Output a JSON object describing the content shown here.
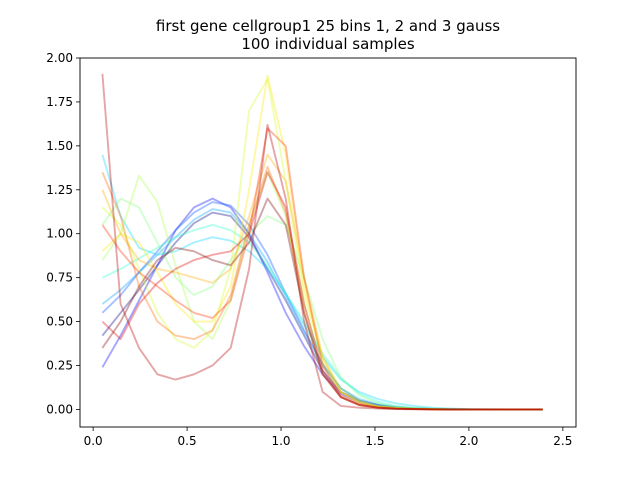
{
  "chart_data": {
    "type": "line",
    "title": "first gene cellgroup1 25 bins 1, 2 and 3 gauss",
    "subtitle": "100 individual samples",
    "xlabel": "",
    "ylabel": "",
    "xlim": [
      -0.07,
      2.57
    ],
    "ylim": [
      -0.1,
      2.0
    ],
    "xticks": [
      0.0,
      0.5,
      1.0,
      1.5,
      2.0,
      2.5
    ],
    "xtick_labels": [
      "0.0",
      "0.5",
      "1.0",
      "1.5",
      "2.0",
      "2.5"
    ],
    "yticks": [
      0.0,
      0.25,
      0.5,
      0.75,
      1.0,
      1.25,
      1.5,
      1.75,
      2.0
    ],
    "ytick_labels": [
      "0.00",
      "0.25",
      "0.50",
      "0.75",
      "1.00",
      "1.25",
      "1.50",
      "1.75",
      "2.00"
    ],
    "grid": false,
    "legend": "none",
    "colormap": "jet",
    "line_alpha": 0.35,
    "x": [
      0.049,
      0.146,
      0.244,
      0.342,
      0.439,
      0.537,
      0.635,
      0.732,
      0.83,
      0.928,
      1.025,
      1.123,
      1.221,
      1.318,
      1.416,
      1.514,
      1.611,
      1.709,
      1.807,
      1.904,
      2.002,
      2.1,
      2.197,
      2.295,
      2.393
    ],
    "series": [
      {
        "color": "#00007f",
        "values": [
          0.42,
          0.55,
          0.68,
          0.82,
          0.95,
          1.06,
          1.12,
          1.1,
          0.98,
          0.8,
          0.62,
          0.42,
          0.22,
          0.1,
          0.05,
          0.025,
          0.012,
          0.006,
          0.003,
          0.001,
          0.0,
          0.0,
          0.0,
          0.0,
          0.0
        ]
      },
      {
        "color": "#0000ff",
        "values": [
          0.24,
          0.42,
          0.62,
          0.82,
          1.02,
          1.15,
          1.2,
          1.15,
          1.0,
          0.78,
          0.55,
          0.36,
          0.2,
          0.09,
          0.04,
          0.02,
          0.01,
          0.005,
          0.002,
          0.001,
          0.0,
          0.0,
          0.0,
          0.0,
          0.0
        ]
      },
      {
        "color": "#0050ff",
        "values": [
          0.55,
          0.65,
          0.78,
          0.9,
          1.02,
          1.12,
          1.18,
          1.16,
          1.05,
          0.88,
          0.66,
          0.45,
          0.26,
          0.12,
          0.05,
          0.025,
          0.012,
          0.006,
          0.003,
          0.001,
          0.0,
          0.0,
          0.0,
          0.0,
          0.0
        ]
      },
      {
        "color": "#00a0ff",
        "values": [
          0.6,
          0.68,
          0.78,
          0.88,
          0.98,
          1.08,
          1.14,
          1.12,
          1.0,
          0.84,
          0.64,
          0.44,
          0.25,
          0.12,
          0.06,
          0.03,
          0.015,
          0.007,
          0.003,
          0.001,
          0.0,
          0.0,
          0.0,
          0.0,
          0.0
        ]
      },
      {
        "color": "#00d4ff",
        "values": [
          1.45,
          1.1,
          0.92,
          0.88,
          0.9,
          0.95,
          0.98,
          0.96,
          0.9,
          0.8,
          0.66,
          0.48,
          0.3,
          0.17,
          0.1,
          0.06,
          0.035,
          0.02,
          0.01,
          0.005,
          0.002,
          0.001,
          0.0,
          0.0,
          0.0
        ]
      },
      {
        "color": "#29ffce",
        "values": [
          0.75,
          0.8,
          0.86,
          0.92,
          0.98,
          1.02,
          1.05,
          1.02,
          0.95,
          0.82,
          0.66,
          0.5,
          0.32,
          0.18,
          0.09,
          0.045,
          0.02,
          0.01,
          0.005,
          0.002,
          0.001,
          0.0,
          0.0,
          0.0,
          0.0
        ]
      },
      {
        "color": "#7dff7a",
        "values": [
          1.05,
          1.2,
          1.15,
          0.95,
          0.75,
          0.65,
          0.7,
          0.85,
          1.0,
          1.1,
          1.05,
          0.75,
          0.4,
          0.18,
          0.08,
          0.035,
          0.015,
          0.007,
          0.003,
          0.001,
          0.0,
          0.0,
          0.0,
          0.0,
          0.0
        ]
      },
      {
        "color": "#a8ff4a",
        "values": [
          0.85,
          1.0,
          1.33,
          1.18,
          0.82,
          0.5,
          0.4,
          0.62,
          1.05,
          1.35,
          1.1,
          0.6,
          0.25,
          0.1,
          0.04,
          0.018,
          0.008,
          0.004,
          0.002,
          0.001,
          0.0,
          0.0,
          0.0,
          0.0,
          0.0
        ]
      },
      {
        "color": "#ceff29",
        "values": [
          1.15,
          1.05,
          0.8,
          0.55,
          0.4,
          0.35,
          0.45,
          0.8,
          1.7,
          1.88,
          1.3,
          0.65,
          0.3,
          0.12,
          0.05,
          0.02,
          0.01,
          0.005,
          0.002,
          0.001,
          0.0,
          0.0,
          0.0,
          0.0,
          0.0
        ]
      },
      {
        "color": "#ffe600",
        "values": [
          0.9,
          1.0,
          0.95,
          0.78,
          0.6,
          0.5,
          0.5,
          0.7,
          1.25,
          1.9,
          1.45,
          0.7,
          0.28,
          0.1,
          0.04,
          0.016,
          0.007,
          0.003,
          0.001,
          0.0,
          0.0,
          0.0,
          0.0,
          0.0,
          0.0
        ]
      },
      {
        "color": "#ffb000",
        "values": [
          1.25,
          1.0,
          0.85,
          0.8,
          0.78,
          0.75,
          0.72,
          0.8,
          1.1,
          1.45,
          1.3,
          0.75,
          0.3,
          0.1,
          0.04,
          0.015,
          0.006,
          0.003,
          0.001,
          0.0,
          0.0,
          0.0,
          0.0,
          0.0,
          0.0
        ]
      },
      {
        "color": "#ff6800",
        "values": [
          1.35,
          1.1,
          0.7,
          0.5,
          0.42,
          0.4,
          0.45,
          0.65,
          1.05,
          1.38,
          1.12,
          0.55,
          0.2,
          0.07,
          0.025,
          0.01,
          0.004,
          0.002,
          0.001,
          0.0,
          0.0,
          0.0,
          0.0,
          0.0,
          0.0
        ]
      },
      {
        "color": "#ff3000",
        "values": [
          1.05,
          0.9,
          0.78,
          0.7,
          0.62,
          0.55,
          0.52,
          0.62,
          1.0,
          1.6,
          1.5,
          0.75,
          0.25,
          0.08,
          0.03,
          0.012,
          0.005,
          0.002,
          0.001,
          0.0,
          0.0,
          0.0,
          0.0,
          0.0,
          0.0
        ]
      },
      {
        "color": "#e60000",
        "values": [
          0.5,
          0.4,
          0.6,
          0.72,
          0.8,
          0.85,
          0.88,
          0.9,
          1.0,
          1.35,
          1.15,
          0.6,
          0.22,
          0.07,
          0.025,
          0.01,
          0.004,
          0.002,
          0.001,
          0.0,
          0.0,
          0.0,
          0.0,
          0.0,
          0.0
        ]
      },
      {
        "color": "#b20000",
        "values": [
          1.91,
          0.6,
          0.35,
          0.2,
          0.17,
          0.2,
          0.25,
          0.35,
          0.8,
          1.62,
          1.2,
          0.5,
          0.1,
          0.02,
          0.01,
          0.005,
          0.002,
          0.001,
          0.0,
          0.0,
          0.0,
          0.0,
          0.0,
          0.0,
          0.0
        ]
      },
      {
        "color": "#7f0000",
        "values": [
          0.35,
          0.5,
          0.7,
          0.85,
          0.92,
          0.9,
          0.85,
          0.82,
          0.95,
          1.2,
          1.05,
          0.55,
          0.2,
          0.07,
          0.025,
          0.01,
          0.004,
          0.002,
          0.001,
          0.0,
          0.0,
          0.0,
          0.0,
          0.0,
          0.0
        ]
      }
    ]
  }
}
